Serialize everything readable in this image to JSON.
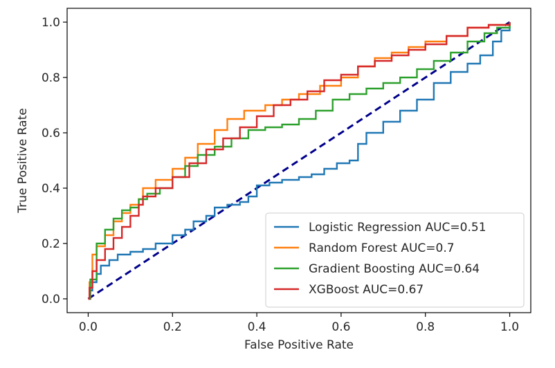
{
  "chart_data": {
    "type": "line",
    "title": "",
    "xlabel": "False Positive Rate",
    "ylabel": "True Positive Rate",
    "xlim": [
      -0.05,
      1.05
    ],
    "ylim": [
      -0.05,
      1.05
    ],
    "xticks": [
      "0.0",
      "0.2",
      "0.4",
      "0.6",
      "0.8",
      "1.0"
    ],
    "yticks": [
      "0.0",
      "0.2",
      "0.4",
      "0.6",
      "0.8",
      "1.0"
    ],
    "grid": false,
    "legend_position": "lower-right",
    "series": [
      {
        "name": "Logistic Regression AUC=0.51",
        "color": "#1f77b4",
        "x": [
          0.0,
          0.005,
          0.01,
          0.02,
          0.03,
          0.05,
          0.07,
          0.1,
          0.13,
          0.16,
          0.2,
          0.23,
          0.25,
          0.28,
          0.3,
          0.33,
          0.36,
          0.38,
          0.4,
          0.43,
          0.46,
          0.5,
          0.53,
          0.56,
          0.59,
          0.62,
          0.64,
          0.66,
          0.7,
          0.74,
          0.78,
          0.82,
          0.86,
          0.9,
          0.93,
          0.96,
          0.98,
          1.0
        ],
        "y": [
          0.0,
          0.03,
          0.06,
          0.09,
          0.12,
          0.14,
          0.16,
          0.17,
          0.18,
          0.2,
          0.23,
          0.25,
          0.28,
          0.3,
          0.33,
          0.34,
          0.35,
          0.37,
          0.41,
          0.42,
          0.43,
          0.44,
          0.45,
          0.47,
          0.49,
          0.5,
          0.56,
          0.6,
          0.64,
          0.68,
          0.72,
          0.78,
          0.82,
          0.85,
          0.88,
          0.93,
          0.97,
          1.0
        ]
      },
      {
        "name": "Random Forest AUC=0.7",
        "color": "#ff7f0e",
        "x": [
          0.0,
          0.003,
          0.01,
          0.02,
          0.04,
          0.06,
          0.08,
          0.1,
          0.12,
          0.13,
          0.16,
          0.2,
          0.23,
          0.26,
          0.3,
          0.33,
          0.37,
          0.42,
          0.46,
          0.5,
          0.55,
          0.6,
          0.64,
          0.68,
          0.72,
          0.76,
          0.8,
          0.85,
          0.9,
          0.95,
          1.0
        ],
        "y": [
          0.0,
          0.06,
          0.16,
          0.19,
          0.23,
          0.28,
          0.31,
          0.34,
          0.36,
          0.4,
          0.43,
          0.47,
          0.51,
          0.56,
          0.61,
          0.65,
          0.68,
          0.7,
          0.72,
          0.74,
          0.77,
          0.8,
          0.84,
          0.87,
          0.89,
          0.91,
          0.93,
          0.95,
          0.98,
          0.99,
          1.0
        ]
      },
      {
        "name": "Gradient Boosting AUC=0.64",
        "color": "#2ca02c",
        "x": [
          0.0,
          0.005,
          0.02,
          0.04,
          0.06,
          0.08,
          0.1,
          0.12,
          0.14,
          0.17,
          0.2,
          0.23,
          0.26,
          0.3,
          0.34,
          0.38,
          0.42,
          0.46,
          0.5,
          0.54,
          0.58,
          0.62,
          0.66,
          0.7,
          0.74,
          0.78,
          0.82,
          0.86,
          0.9,
          0.94,
          0.97,
          1.0
        ],
        "y": [
          0.0,
          0.07,
          0.2,
          0.25,
          0.29,
          0.32,
          0.33,
          0.36,
          0.38,
          0.4,
          0.44,
          0.48,
          0.52,
          0.55,
          0.58,
          0.61,
          0.62,
          0.63,
          0.65,
          0.68,
          0.72,
          0.74,
          0.76,
          0.78,
          0.8,
          0.83,
          0.86,
          0.89,
          0.93,
          0.96,
          0.98,
          1.0
        ]
      },
      {
        "name": "XGBoost AUC=0.67",
        "color": "#d62728",
        "x": [
          0.0,
          0.003,
          0.01,
          0.02,
          0.04,
          0.06,
          0.08,
          0.1,
          0.12,
          0.13,
          0.16,
          0.2,
          0.24,
          0.28,
          0.32,
          0.36,
          0.4,
          0.44,
          0.48,
          0.52,
          0.56,
          0.6,
          0.64,
          0.68,
          0.72,
          0.76,
          0.8,
          0.85,
          0.9,
          0.95,
          1.0
        ],
        "y": [
          0.0,
          0.04,
          0.1,
          0.14,
          0.18,
          0.22,
          0.26,
          0.3,
          0.34,
          0.37,
          0.4,
          0.44,
          0.49,
          0.54,
          0.58,
          0.62,
          0.66,
          0.7,
          0.72,
          0.75,
          0.79,
          0.81,
          0.84,
          0.86,
          0.88,
          0.9,
          0.92,
          0.95,
          0.98,
          0.99,
          1.0
        ]
      }
    ],
    "reference_line": {
      "x": [
        0,
        1
      ],
      "y": [
        0,
        1
      ],
      "color": "#00008b",
      "style": "dashed"
    }
  }
}
